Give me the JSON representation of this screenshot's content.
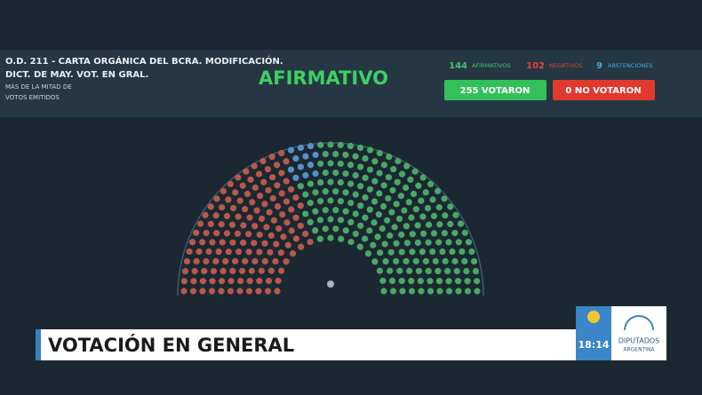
{
  "header": {
    "title_line1": "O.D. 211 - CARTA ORGÁNICA DEL BCRA. MODIFICACIÓN.",
    "title_line2": "DICT. DE MAY. VOT. EN GRAL.",
    "majority_line1": "MÁS DE LA MITAD DE",
    "majority_line2": "VOTOS EMITIDOS",
    "result": "AFIRMATIVO"
  },
  "tally": {
    "affirmative": {
      "count": 144,
      "label": "AFIRMATIVOS"
    },
    "negative": {
      "count": 102,
      "label": "NEGATIVOS"
    },
    "abstention": {
      "count": 9,
      "label": "ABSTENCIONES"
    }
  },
  "buttons": {
    "voted": "255 VOTARON",
    "not_voted": "0 NO VOTARON"
  },
  "lower_third": {
    "headline": "VOTACIÓN EN GENERAL",
    "time": "18:14",
    "channel": "DIPUTADOS",
    "country": "ARGENTINA"
  }
}
